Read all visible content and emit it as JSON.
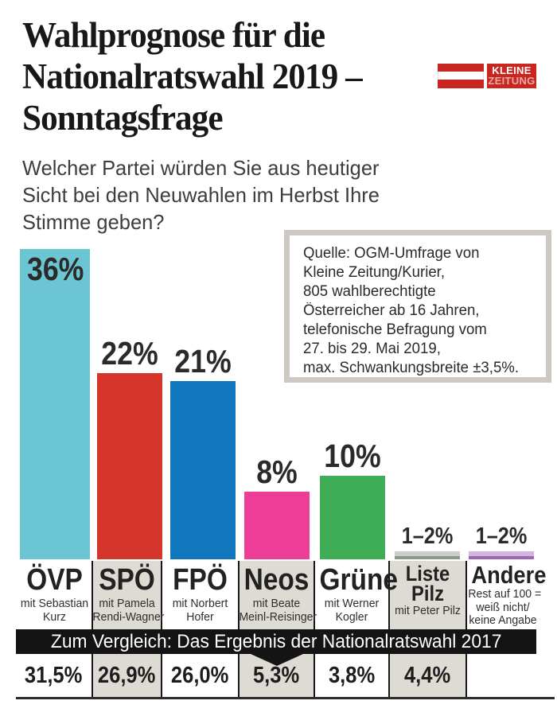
{
  "header": {
    "title_lines": [
      "Wahlprognose für die",
      "Nationalratswahl 2019 –",
      "Sonntagsfrage"
    ],
    "logo": {
      "top": "KLEINE",
      "bottom": "ZEITUNG",
      "brand_red": "#c8261e"
    }
  },
  "question_lines": [
    "Welcher Partei würden Sie aus heutiger",
    "Sicht bei den Neuwahlen im Herbst Ihre",
    "Stimme geben?"
  ],
  "source_box": {
    "lines": [
      "Quelle: OGM-Umfrage von",
      "Kleine Zeitung/Kurier,",
      "805 wahlberechtigte",
      "Österreicher ab 16 Jahren,",
      "telefonische Befragung vom",
      "27. bis 29. Mai 2019,",
      "max. Schwankungsbreite ±3,5%."
    ]
  },
  "parties": [
    {
      "name": "ÖVP",
      "sub": [
        "mit Sebastian",
        "Kurz"
      ],
      "value_label": "36%",
      "result_2017": "31,5%",
      "color": "#6bc5d2"
    },
    {
      "name": "SPÖ",
      "sub": [
        "mit Pamela",
        "Rendi-Wagner"
      ],
      "value_label": "22%",
      "result_2017": "26,9%",
      "color": "#d6352b"
    },
    {
      "name": "FPÖ",
      "sub": [
        "mit Norbert",
        "Hofer"
      ],
      "value_label": "21%",
      "result_2017": "26,0%",
      "color": "#1276bc"
    },
    {
      "name": "Neos",
      "sub": [
        "mit Beate",
        "Meinl-Reisinger"
      ],
      "value_label": "8%",
      "result_2017": "5,3%",
      "color": "#ed3e97"
    },
    {
      "name": "Grüne",
      "sub": [
        "mit Werner",
        "Kogler"
      ],
      "value_label": "10%",
      "result_2017": "3,8%",
      "color": "#3fad55"
    },
    {
      "name": "Liste Pilz",
      "name_lines": [
        "Liste",
        "Pilz"
      ],
      "sub": [
        "mit Peter Pilz"
      ],
      "value_label": "1–2%",
      "result_2017": "4,4%",
      "color": "#c9cfc6",
      "color_dark": "#8e998c"
    },
    {
      "name": "Andere",
      "sub": [
        "Rest auf 100 =",
        "weiß nicht/",
        "keine Angabe"
      ],
      "value_label": "1–2%",
      "result_2017": "",
      "color": "#d5b3e2",
      "color_dark": "#9d68b3"
    }
  ],
  "comparison": {
    "banner": "Zum Vergleich: Das Ergebnis der Nationalratswahl 2017"
  },
  "chart_data": {
    "type": "bar",
    "title": "Wahlprognose für die Nationalratswahl 2019 – Sonntagsfrage",
    "question": "Welcher Partei würden Sie aus heutiger Sicht bei den Neuwahlen im Herbst Ihre Stimme geben?",
    "source": "Quelle: OGM-Umfrage von Kleine Zeitung/Kurier, 805 wahlberechtigte Österreicher ab 16 Jahren, telefonische Befragung vom 27. bis 29. Mai 2019, max. Schwankungsbreite ±3,5%.",
    "categories": [
      "ÖVP",
      "SPÖ",
      "FPÖ",
      "Neos",
      "Grüne",
      "Liste Pilz",
      "Andere"
    ],
    "leaders": [
      "Sebastian Kurz",
      "Pamela Rendi-Wagner",
      "Norbert Hofer",
      "Beate Meinl-Reisinger",
      "Werner Kogler",
      "Peter Pilz",
      ""
    ],
    "series": [
      {
        "name": "Sonntagsfrage Prognose 2019",
        "values": [
          36,
          22,
          21,
          8,
          10,
          1.5,
          1.5
        ],
        "labels": [
          "36%",
          "22%",
          "21%",
          "8%",
          "10%",
          "1–2%",
          "1–2%"
        ]
      },
      {
        "name": "Ergebnis Nationalratswahl 2017",
        "values": [
          31.5,
          26.9,
          26.0,
          5.3,
          3.8,
          4.4,
          null
        ],
        "labels": [
          "31,5%",
          "26,9%",
          "26,0%",
          "5,3%",
          "3,8%",
          "4,4%",
          ""
        ]
      }
    ],
    "bar_colors": [
      "#6bc5d2",
      "#d6352b",
      "#1276bc",
      "#ed3e97",
      "#3fad55",
      "#c9cfc6",
      "#d5b3e2"
    ],
    "ylim": [
      0,
      40
    ],
    "grid": false,
    "legend": "none",
    "annotation_note": "Andere: Rest auf 100 = weiß nicht/keine Angabe"
  }
}
